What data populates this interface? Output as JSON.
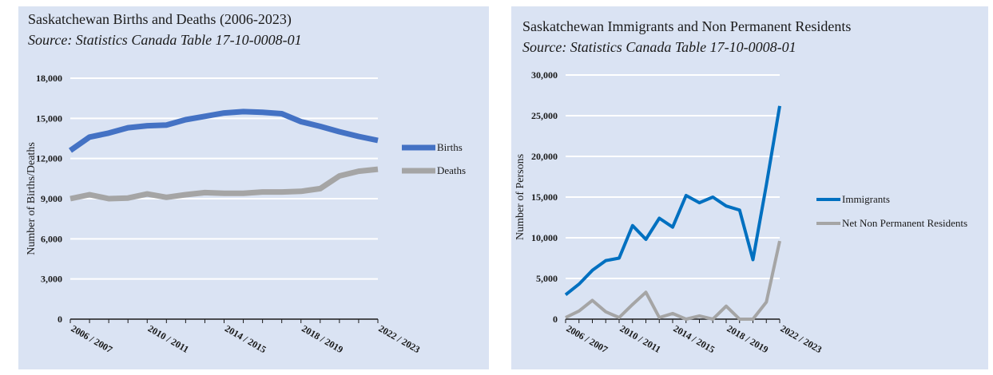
{
  "charts": [
    {
      "title": "Saskatchewan Births and Deaths (2006-2023)",
      "subtitle": "Source: Statistics Canada Table 17-10-0008-01",
      "ylabel": "Number of Births/Deaths",
      "xtick_labels": [
        "2006 / 2007",
        "2010 / 2011",
        "2014 / 2015",
        "2018 / 2019",
        "2022 / 2023"
      ],
      "ytick_labels": [
        "0",
        "3,000",
        "6,000",
        "9,000",
        "12,000",
        "15,000",
        "18,000"
      ]
    },
    {
      "title": "Saskatchewan Immigrants and Non Permanent Residents",
      "subtitle": "Source: Statistics Canada Table 17-10-0008-01",
      "ylabel": "Number of Persons",
      "xtick_labels": [
        "2006 / 2007",
        "2010 / 2011",
        "2014 / 2015",
        "2018 / 2019",
        "2022 / 2023"
      ],
      "ytick_labels": [
        "0",
        "5,000",
        "10,000",
        "15,000",
        "20,000",
        "25,000",
        "30,000"
      ]
    }
  ],
  "chart_data": [
    {
      "type": "line",
      "title": "Saskatchewan Births and Deaths (2006-2023)",
      "subtitle": "Source: Statistics Canada Table 17-10-0008-01",
      "xlabel": "",
      "ylabel": "Number of Births/Deaths",
      "ylim": [
        0,
        18000
      ],
      "yticks": [
        0,
        3000,
        6000,
        9000,
        12000,
        15000,
        18000
      ],
      "categories": [
        "2006 / 2007",
        "2007 / 2008",
        "2008 / 2009",
        "2009 / 2010",
        "2010 / 2011",
        "2011 / 2012",
        "2012 / 2013",
        "2013 / 2014",
        "2014 / 2015",
        "2015 / 2016",
        "2016 / 2017",
        "2017 / 2018",
        "2018 / 2019",
        "2019 / 2020",
        "2020 / 2021",
        "2021 / 2022",
        "2022 / 2023"
      ],
      "series": [
        {
          "name": "Births",
          "color": "#4472c4",
          "values": [
            12600,
            13600,
            13900,
            14300,
            14450,
            14500,
            14900,
            15150,
            15400,
            15500,
            15450,
            15350,
            14750,
            14400,
            14000,
            13650,
            13350
          ]
        },
        {
          "name": "Deaths",
          "color": "#a5a5a5",
          "values": [
            9000,
            9300,
            9000,
            9050,
            9350,
            9100,
            9300,
            9450,
            9400,
            9400,
            9500,
            9500,
            9550,
            9750,
            10700,
            11050,
            11200
          ]
        }
      ],
      "grid": "horizontal",
      "legend": "right"
    },
    {
      "type": "line",
      "title": "Saskatchewan Immigrants and Non Permanent Residents",
      "subtitle": "Source: Statistics Canada Table 17-10-0008-01",
      "xlabel": "",
      "ylabel": "Number of Persons",
      "ylim": [
        0,
        30000
      ],
      "yticks": [
        0,
        5000,
        10000,
        15000,
        20000,
        25000,
        30000
      ],
      "categories": [
        "2006 / 2007",
        "2007 / 2008",
        "2008 / 2009",
        "2009 / 2010",
        "2010 / 2011",
        "2011 / 2012",
        "2012 / 2013",
        "2013 / 2014",
        "2014 / 2015",
        "2015 / 2016",
        "2016 / 2017",
        "2017 / 2018",
        "2018 / 2019",
        "2019 / 2020",
        "2020 / 2021",
        "2021 / 2022",
        "2022 / 2023"
      ],
      "series": [
        {
          "name": "Immigrants",
          "color": "#0070c0",
          "values": [
            3000,
            4300,
            6000,
            7200,
            7500,
            11500,
            9800,
            12400,
            11300,
            15200,
            14300,
            15000,
            13900,
            13400,
            7300,
            16500,
            26200
          ]
        },
        {
          "name": "Net Non Permanent Residents",
          "color": "#a5a5a5",
          "values": [
            200,
            1000,
            2300,
            900,
            200,
            1800,
            3300,
            200,
            700,
            -100,
            400,
            -100,
            1600,
            -200,
            -100,
            2100,
            9600
          ]
        }
      ],
      "grid": "horizontal",
      "legend": "right"
    }
  ]
}
